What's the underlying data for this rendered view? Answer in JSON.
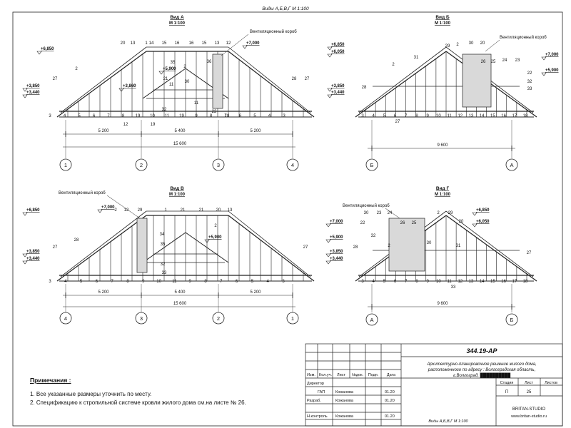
{
  "header": {
    "title": "Виды А,Б,В,Г  М 1:100"
  },
  "views": [
    {
      "id": "A",
      "title": "Вид А",
      "scale": "М 1:100",
      "vent_label": "Вентиляционный короб",
      "levels": [
        "+6,850",
        "+7,000",
        "+5,900",
        "+3,860",
        "+3,850",
        "+3,440"
      ],
      "dims": [
        "5 200",
        "5 400",
        "5 200"
      ],
      "dim_total": "15 600",
      "axes": [
        "1",
        "2",
        "3",
        "4"
      ],
      "top_marks": [
        "20",
        "13",
        "1",
        "14",
        "15",
        "16",
        "16",
        "15",
        "13",
        "12"
      ],
      "bottom_marks": [
        "3",
        "4",
        "5",
        "6",
        "7",
        "8",
        "19",
        "10",
        "11",
        "19",
        "9",
        "8",
        "7",
        "6",
        "5",
        "4",
        "3"
      ],
      "inner_marks": [
        "27",
        "2",
        "35",
        "2",
        "36",
        "27",
        "28",
        "21",
        "11",
        "30",
        "32",
        "11",
        "12",
        "18",
        "19",
        "22"
      ]
    },
    {
      "id": "B",
      "title": "Вид Б",
      "scale": "М 1:100",
      "vent_label": "Вентиляционный короб",
      "levels": [
        "+6,850",
        "+6,050",
        "+7,000",
        "+5,900",
        "+3,850",
        "+3,440"
      ],
      "dim_total": "9 600",
      "axes": [
        "Б",
        "А"
      ],
      "marks": [
        "29",
        "2",
        "30",
        "20",
        "31",
        "26",
        "25",
        "24",
        "23",
        "22",
        "32",
        "33",
        "28",
        "27",
        "2",
        "3",
        "4",
        "5",
        "6",
        "7",
        "8",
        "9",
        "10",
        "11",
        "12",
        "13",
        "14",
        "15",
        "16",
        "17",
        "18"
      ]
    },
    {
      "id": "C",
      "title": "Вид В",
      "scale": "М 1:100",
      "vent_label": "Вентиляционный короб",
      "levels": [
        "+6,850",
        "+7,000",
        "+5,900",
        "+3,850",
        "+3,440"
      ],
      "dims": [
        "5 200",
        "5 400",
        "5 200"
      ],
      "dim_total": "15 600",
      "axes": [
        "4",
        "3",
        "2",
        "1"
      ],
      "top_marks": [
        "2",
        "12",
        "29",
        "1",
        "21",
        "21",
        "20",
        "13"
      ],
      "bottom_marks": [
        "3",
        "4",
        "5",
        "6",
        "7",
        "8",
        "9",
        "10",
        "11",
        "9",
        "8",
        "7",
        "6",
        "5",
        "4",
        "3"
      ],
      "inner_marks": [
        "28",
        "27",
        "34",
        "35",
        "33",
        "32",
        "2",
        "27"
      ]
    },
    {
      "id": "D",
      "title": "Вид Г",
      "scale": "М 1:100",
      "vent_label": "Вентиляционный короб",
      "levels": [
        "+6,850",
        "+6,050",
        "+7,000",
        "+5,900",
        "+3,850",
        "+3,440"
      ],
      "dim_total": "9 600",
      "axes": [
        "А",
        "Б"
      ],
      "marks": [
        "30",
        "23",
        "24",
        "2",
        "29",
        "20",
        "26",
        "25",
        "22",
        "30",
        "31",
        "2",
        "32",
        "28",
        "27",
        "33",
        "3",
        "4",
        "5",
        "6",
        "7",
        "8",
        "9",
        "10",
        "11",
        "12",
        "13",
        "14",
        "15",
        "16",
        "17",
        "18"
      ]
    }
  ],
  "notes": {
    "heading": "Примечания :",
    "items": [
      "1.  Все указанные размеры уточнить по месту.",
      "2.  Спецификацию к стропильной системе кровли жилого дома  см.на листе № 26."
    ]
  },
  "title_block": {
    "code": "344.19-АР",
    "description_lines": [
      "Архитектурно-планировочное решение жилого дома,",
      "расположенного по адресу : Волгоградская область,",
      "г.Волгоград, ██████████"
    ],
    "columns": [
      "Изм.",
      "Кол.уч.",
      "Лист",
      "№док.",
      "Подп.",
      "Дата"
    ],
    "roles": [
      {
        "role": "Директор",
        "name": "",
        "date": ""
      },
      {
        "role": "ГАП",
        "name": "Кожанова",
        "date": "01.20"
      },
      {
        "role": "Разраб.",
        "name": "Кожанова",
        "date": "01.20"
      },
      {
        "role": "",
        "name": "",
        "date": ""
      },
      {
        "role": "Н.контроль",
        "name": "Кожанова",
        "date": "01.20"
      }
    ],
    "stage_headers": [
      "Стадия",
      "Лист",
      "Листов"
    ],
    "stage_values": [
      "П",
      "25",
      ""
    ],
    "sheet_name": "Виды А,Б,В,Г  М 1:100",
    "company": "BRITAN-STUDIO",
    "website": "www.britan-studio.ru"
  },
  "colors": {
    "line": "#222222",
    "blue_level": "#1a3fcf",
    "vent_fill": "#d9d9d9"
  }
}
